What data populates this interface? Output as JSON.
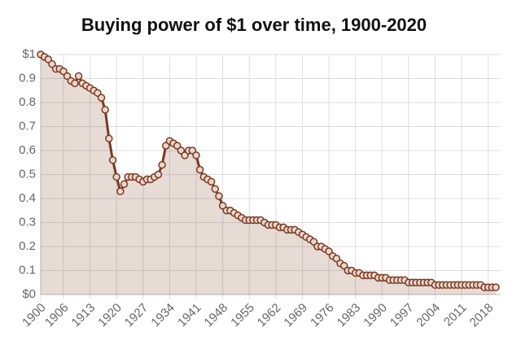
{
  "chart_data": {
    "type": "line",
    "title": "Buying power of $1 over time, 1900-2020",
    "x": [
      1900,
      1901,
      1902,
      1903,
      1904,
      1905,
      1906,
      1907,
      1908,
      1909,
      1910,
      1911,
      1912,
      1913,
      1914,
      1915,
      1916,
      1917,
      1918,
      1919,
      1920,
      1921,
      1922,
      1923,
      1924,
      1925,
      1926,
      1927,
      1928,
      1929,
      1930,
      1931,
      1932,
      1933,
      1934,
      1935,
      1936,
      1937,
      1938,
      1939,
      1940,
      1941,
      1942,
      1943,
      1944,
      1945,
      1946,
      1947,
      1948,
      1949,
      1950,
      1951,
      1952,
      1953,
      1954,
      1955,
      1956,
      1957,
      1958,
      1959,
      1960,
      1961,
      1962,
      1963,
      1964,
      1965,
      1966,
      1967,
      1968,
      1969,
      1970,
      1971,
      1972,
      1973,
      1974,
      1975,
      1976,
      1977,
      1978,
      1979,
      1980,
      1981,
      1982,
      1983,
      1984,
      1985,
      1986,
      1987,
      1988,
      1989,
      1990,
      1991,
      1992,
      1993,
      1994,
      1995,
      1996,
      1997,
      1998,
      1999,
      2000,
      2001,
      2002,
      2003,
      2004,
      2005,
      2006,
      2007,
      2008,
      2009,
      2010,
      2011,
      2012,
      2013,
      2014,
      2015,
      2016,
      2017,
      2018,
      2019,
      2020
    ],
    "values": [
      1.0,
      0.99,
      0.98,
      0.96,
      0.94,
      0.94,
      0.93,
      0.91,
      0.89,
      0.88,
      0.91,
      0.88,
      0.87,
      0.86,
      0.85,
      0.84,
      0.82,
      0.77,
      0.65,
      0.56,
      0.49,
      0.43,
      0.46,
      0.49,
      0.49,
      0.49,
      0.48,
      0.47,
      0.48,
      0.48,
      0.49,
      0.5,
      0.54,
      0.62,
      0.64,
      0.63,
      0.62,
      0.6,
      0.58,
      0.6,
      0.6,
      0.58,
      0.52,
      0.49,
      0.48,
      0.47,
      0.44,
      0.41,
      0.37,
      0.35,
      0.35,
      0.34,
      0.33,
      0.32,
      0.31,
      0.31,
      0.31,
      0.31,
      0.31,
      0.3,
      0.29,
      0.29,
      0.29,
      0.28,
      0.28,
      0.27,
      0.27,
      0.27,
      0.26,
      0.25,
      0.24,
      0.23,
      0.22,
      0.2,
      0.2,
      0.19,
      0.18,
      0.16,
      0.15,
      0.13,
      0.12,
      0.1,
      0.1,
      0.09,
      0.09,
      0.08,
      0.08,
      0.08,
      0.08,
      0.07,
      0.07,
      0.07,
      0.06,
      0.06,
      0.06,
      0.06,
      0.06,
      0.05,
      0.05,
      0.05,
      0.05,
      0.05,
      0.05,
      0.05,
      0.04,
      0.04,
      0.04,
      0.04,
      0.04,
      0.04,
      0.04,
      0.04,
      0.04,
      0.04,
      0.04,
      0.04,
      0.04,
      0.03,
      0.03,
      0.03,
      0.03
    ],
    "color": "#7b3a1e",
    "xlim": [
      1900,
      2020
    ],
    "xticks": [
      1900,
      1906,
      1913,
      1920,
      1927,
      1934,
      1941,
      1948,
      1955,
      1962,
      1969,
      1976,
      1983,
      1990,
      1997,
      2004,
      2011,
      2018
    ],
    "ylim": [
      0,
      1
    ],
    "yticks": [
      {
        "value": 0,
        "label": "$0"
      },
      0.1,
      0.2,
      0.3,
      0.4,
      0.5,
      0.6,
      0.7,
      0.8,
      0.9,
      {
        "value": 1,
        "label": "$1"
      }
    ],
    "grid": true
  }
}
